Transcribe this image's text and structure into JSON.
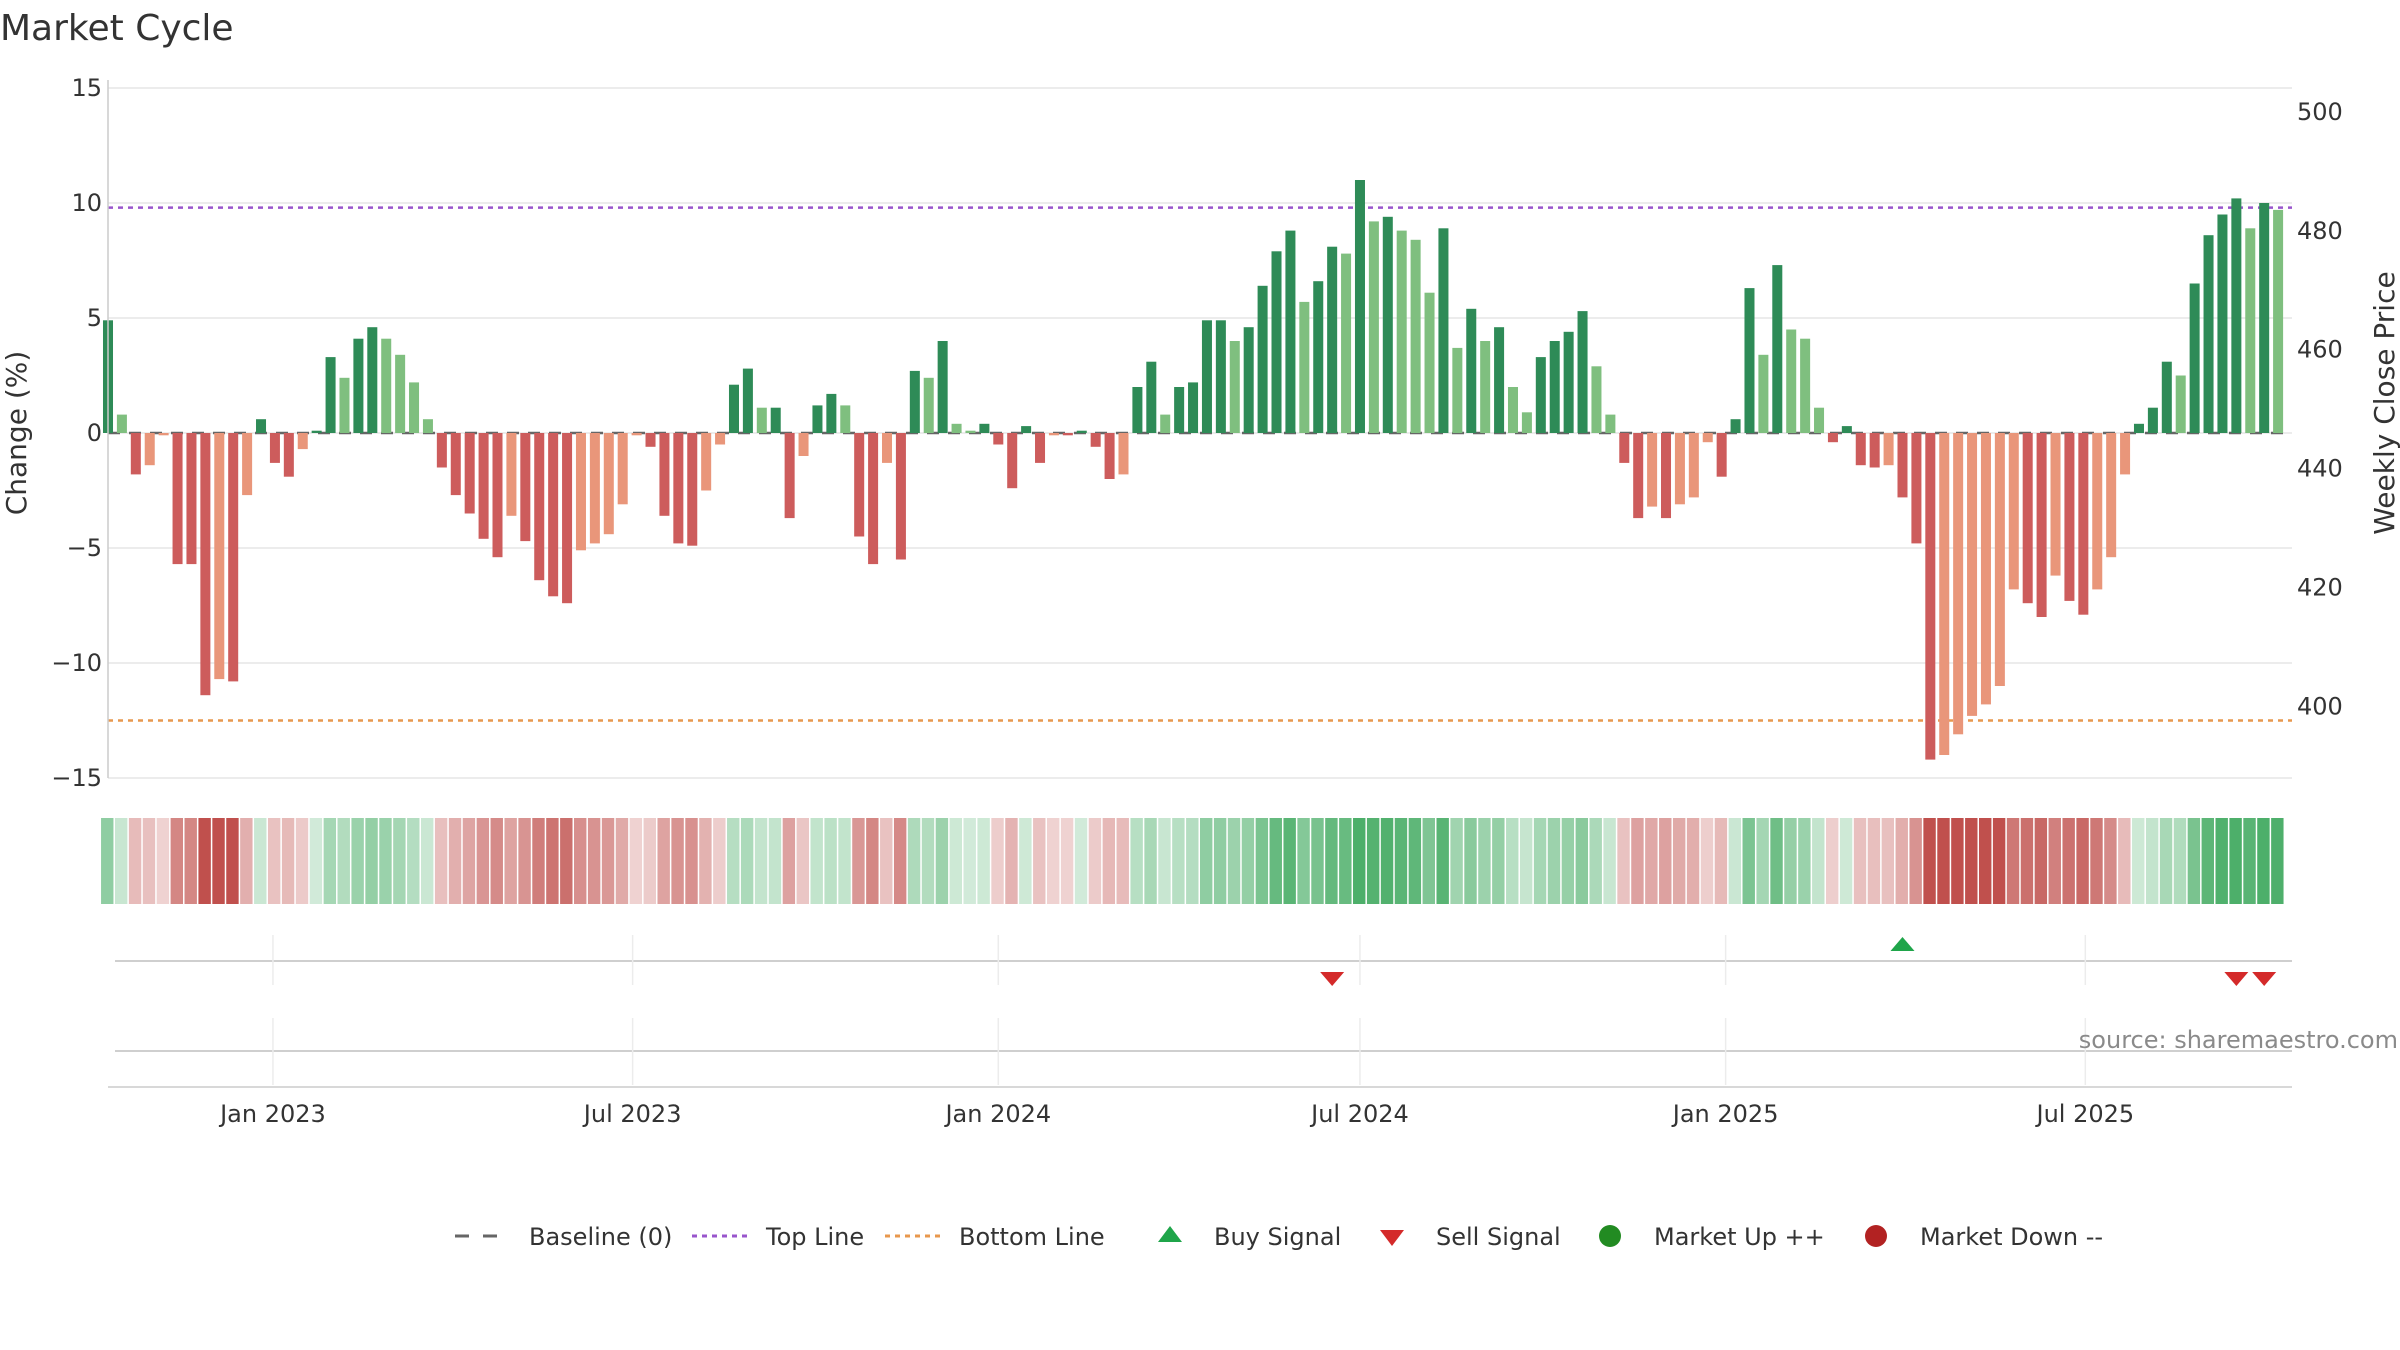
{
  "chart_data": {
    "type": "bar",
    "title": "Market Cycle",
    "ylabel_left": "Change (%)",
    "ylabel_right": "Weekly Close Price",
    "ylim_left": [
      -15,
      15
    ],
    "ylim_right": [
      388,
      504
    ],
    "yticks_left": [
      15,
      10,
      5,
      0,
      -5,
      -10,
      -15
    ],
    "ytick_labels_left": [
      "15",
      "10",
      "5",
      "0",
      "−5",
      "−10",
      "−15"
    ],
    "yticks_right": [
      500,
      480,
      460,
      440,
      420,
      400
    ],
    "ytick_labels_right": [
      "500",
      "480",
      "460",
      "440",
      "420",
      "400"
    ],
    "grid": true,
    "x_start": "2022-10-10",
    "x_end": "2025-10-13",
    "xticks": [
      {
        "date": "2023-01-01",
        "label": "Jan 2023"
      },
      {
        "date": "2023-07-01",
        "label": "Jul 2023"
      },
      {
        "date": "2024-01-01",
        "label": "Jan 2024"
      },
      {
        "date": "2024-07-01",
        "label": "Jul 2024"
      },
      {
        "date": "2025-01-01",
        "label": "Jan 2025"
      },
      {
        "date": "2025-07-01",
        "label": "Jul 2025"
      }
    ],
    "top_line": 9.8,
    "bottom_line": -12.5,
    "baseline": 0,
    "series": [
      {
        "name": "Change",
        "first_week": "2022-10-10",
        "interval_days": 7,
        "values": [
          4.9,
          0.8,
          -1.8,
          -1.4,
          -0.1,
          -5.7,
          -5.7,
          -11.4,
          -10.7,
          -10.8,
          -2.7,
          0.6,
          -1.3,
          -1.9,
          -0.7,
          0.1,
          3.3,
          2.4,
          4.1,
          4.6,
          4.1,
          3.4,
          2.2,
          0.6,
          -1.5,
          -2.7,
          -3.5,
          -4.6,
          -5.4,
          -3.6,
          -4.7,
          -6.4,
          -7.1,
          -7.4,
          -5.1,
          -4.8,
          -4.4,
          -3.1,
          -0.1,
          -0.6,
          -3.6,
          -4.8,
          -4.9,
          -2.5,
          -0.5,
          2.1,
          2.8,
          1.1,
          1.1,
          -3.7,
          -1.0,
          1.2,
          1.7,
          1.2,
          -4.5,
          -5.7,
          -1.3,
          -5.5,
          2.7,
          2.4,
          4.0,
          0.4,
          0.1,
          0.4,
          -0.5,
          -2.4,
          0.3,
          -1.3,
          -0.1,
          -0.1,
          0.1,
          -0.6,
          -2.0,
          -1.8,
          2.0,
          3.1,
          0.8,
          2.0,
          2.2,
          4.9,
          4.9,
          4.0,
          4.6,
          6.4,
          7.9,
          8.8,
          5.7,
          6.6,
          8.1,
          7.8,
          11.0,
          9.2,
          9.4,
          8.8,
          8.4,
          6.1,
          8.9,
          3.7,
          5.4,
          4.0,
          4.6,
          2.0,
          0.9,
          3.3,
          4.0,
          4.4,
          5.3,
          2.9,
          0.8,
          -1.3,
          -3.7,
          -3.2,
          -3.7,
          -3.1,
          -2.8,
          -0.4,
          -1.9,
          0.6,
          6.3,
          3.4,
          7.3,
          4.5,
          4.1,
          1.1,
          -0.4,
          0.3,
          -1.4,
          -1.5,
          -1.4,
          -2.8,
          -4.8,
          -14.2,
          -14.0,
          -13.1,
          -12.3,
          -11.8,
          -11.0,
          -6.8,
          -7.4,
          -8.0,
          -6.2,
          -7.3,
          -7.9,
          -6.8,
          -5.4,
          -1.8,
          0.4,
          1.1,
          3.1,
          2.5,
          6.5,
          8.6,
          9.5,
          10.2,
          8.9,
          10.0,
          9.7
        ]
      }
    ],
    "buy_signals": [
      "2025-03-31"
    ],
    "sell_signals": [
      "2024-06-17",
      "2025-09-15",
      "2025-09-29"
    ],
    "colors": {
      "strong_up": "#2e8b57",
      "weak_up": "#7fbf7f",
      "strong_down": "#cd5c5c",
      "weak_down": "#e9967a",
      "top_line": "#9955cc",
      "bottom_line": "#e8984e",
      "baseline": "#666666",
      "buy": "#1fa54a",
      "sell": "#d42a2a",
      "market_up": "#228b22",
      "market_down": "#b22222"
    },
    "legend_position": "bottom-center",
    "legend": [
      {
        "label": "Baseline (0)",
        "marker": "dash",
        "color": "#666666"
      },
      {
        "label": "Top Line",
        "marker": "dot-line",
        "color": "#9955cc"
      },
      {
        "label": "Bottom Line",
        "marker": "dot-line",
        "color": "#e8984e"
      },
      {
        "label": "Buy Signal",
        "marker": "triangle-up",
        "color": "#1fa54a"
      },
      {
        "label": "Sell Signal",
        "marker": "triangle-down",
        "color": "#d42a2a"
      },
      {
        "label": "Market Up ++",
        "marker": "circle",
        "color": "#228b22"
      },
      {
        "label": "Market Down --",
        "marker": "circle",
        "color": "#b22222"
      }
    ],
    "source": "source: sharemaestro.com"
  }
}
